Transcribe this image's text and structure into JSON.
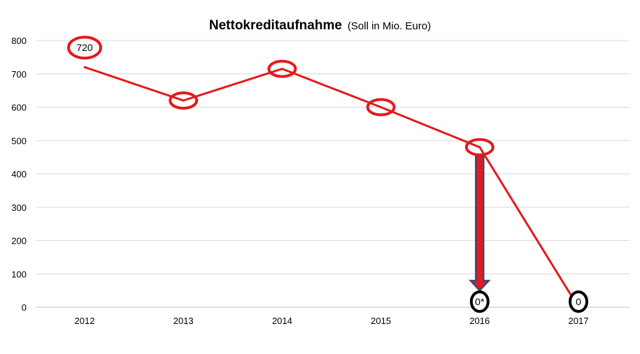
{
  "chart_data": {
    "type": "line",
    "title": "Nettokreditaufnahme",
    "subtitle": "(Soll in Mio. Euro)",
    "xlabel": "",
    "ylabel": "",
    "categories": [
      "2012",
      "2013",
      "2014",
      "2015",
      "2016",
      "2017"
    ],
    "series": [
      {
        "values": [
          720,
          620,
          715,
          600,
          480,
          0
        ]
      }
    ],
    "ylim": [
      0,
      800
    ],
    "yticks": [
      0,
      100,
      200,
      300,
      400,
      500,
      600,
      700,
      800
    ],
    "grid": true,
    "legend": "none",
    "colors": {
      "line": "#e31a1c",
      "highlight_red": "#e31a1c",
      "highlight_black": "#000000",
      "arrow_fill": "#e31a1c",
      "arrow_outline": "#3a4a7a",
      "grid": "#d9d9d9"
    },
    "annotations": [
      {
        "category": "2012",
        "value": 720,
        "label": "720",
        "circle": "red"
      },
      {
        "category": "2013",
        "value": 620,
        "label": "",
        "circle": "red"
      },
      {
        "category": "2014",
        "value": 715,
        "label": "",
        "circle": "red"
      },
      {
        "category": "2015",
        "value": 600,
        "label": "",
        "circle": "red"
      },
      {
        "category": "2016",
        "value": 480,
        "label": "",
        "circle": "red"
      },
      {
        "category": "2016",
        "value": 0,
        "label": "0*",
        "circle": "black"
      },
      {
        "category": "2017",
        "value": 0,
        "label": "0",
        "circle": "black"
      }
    ],
    "arrow": {
      "category": "2016",
      "from": 480,
      "to": 0
    }
  }
}
